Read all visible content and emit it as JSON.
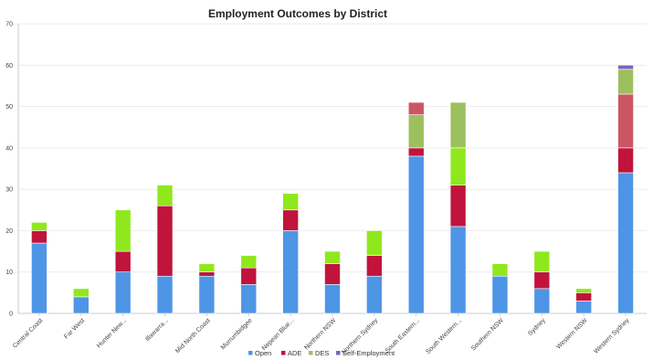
{
  "chart_data": {
    "type": "bar",
    "stacked": true,
    "title": "Employment Outcomes by District",
    "xlabel": "",
    "ylabel": "",
    "ylim": [
      0,
      70
    ],
    "yticks": [
      0,
      10,
      20,
      30,
      40,
      50,
      60,
      70
    ],
    "grid": true,
    "legend_position": "bottom",
    "categories": [
      "Central Coast",
      "Far West",
      "Hunter New...",
      "Illawarra...",
      "Mid North Coast",
      "Murrumbidgee",
      "Nepean Blue...",
      "Northern NSW",
      "Northern Sydney",
      "South Eastern...",
      "South Western...",
      "Southern NSW",
      "Sydney",
      "Western NSW",
      "Western Sydney"
    ],
    "series": [
      {
        "name": "Open",
        "color": "#4e95e6",
        "values": [
          17,
          4,
          10,
          9,
          9,
          7,
          20,
          7,
          9,
          38,
          21,
          9,
          6,
          3,
          34
        ]
      },
      {
        "name": "ADE",
        "color": "#c0143c",
        "values": [
          3,
          0,
          5,
          17,
          1,
          4,
          5,
          5,
          5,
          2,
          10,
          0,
          4,
          2,
          6
        ]
      },
      {
        "name": "DES",
        "color": "#8fe81e",
        "values": [
          2,
          2,
          10,
          5,
          2,
          3,
          4,
          3,
          6,
          0,
          9,
          3,
          5,
          1,
          0
        ]
      },
      {
        "name": "DES",
        "color": "#9cc05e",
        "values": [
          0,
          0,
          0,
          0,
          0,
          0,
          0,
          0,
          0,
          8,
          11,
          0,
          0,
          0,
          0
        ]
      },
      {
        "name": "ADE",
        "color": "#cc5565",
        "values": [
          0,
          0,
          0,
          0,
          0,
          0,
          0,
          0,
          0,
          3,
          0,
          0,
          0,
          0,
          13
        ]
      },
      {
        "name": "DES",
        "color": "#9cc05e",
        "values": [
          0,
          0,
          0,
          0,
          0,
          0,
          0,
          0,
          0,
          0,
          0,
          0,
          0,
          0,
          6
        ]
      },
      {
        "name": "Self-Employment",
        "color": "#7b63b8",
        "values": [
          0,
          0,
          0,
          0,
          0,
          0,
          0,
          0,
          0,
          0,
          0,
          0,
          0,
          0,
          1
        ]
      }
    ],
    "legend": [
      {
        "label": "Open",
        "color": "#4e95e6"
      },
      {
        "label": "ADE",
        "color": "#c0143c"
      },
      {
        "label": "DES",
        "color": "#9cc05e"
      },
      {
        "label": "Self-Employment",
        "color": "#7b63b8"
      }
    ]
  }
}
